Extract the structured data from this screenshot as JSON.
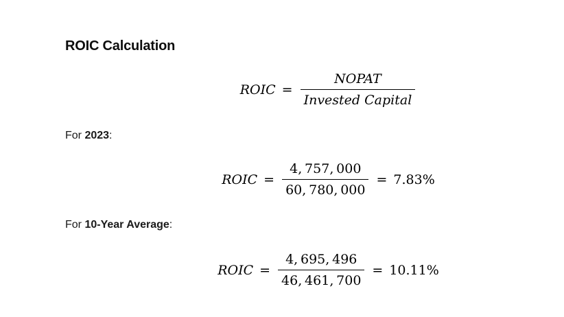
{
  "page": {
    "background": "#ffffff",
    "text_color": "#000000",
    "heading_color": "#0d0d0d"
  },
  "title": "ROIC Calculation",
  "general_formula": {
    "lhs": "ROIC",
    "equals": "=",
    "numerator": "NOPAT",
    "denominator": "Invested Capital"
  },
  "sections": [
    {
      "label_prefix": "For ",
      "label_bold": "2023",
      "label_suffix": ":",
      "formula": {
        "lhs": "ROIC",
        "equals": "=",
        "numerator": "4,757,000",
        "denominator": "60,780,000",
        "result_equals": "=",
        "result": "7.83%"
      }
    },
    {
      "label_prefix": "For ",
      "label_bold": "10-Year Average",
      "label_suffix": ":",
      "formula": {
        "lhs": "ROIC",
        "equals": "=",
        "numerator": "4,695,496",
        "denominator": "46,461,700",
        "result_equals": "=",
        "result": "10.11%"
      }
    }
  ]
}
